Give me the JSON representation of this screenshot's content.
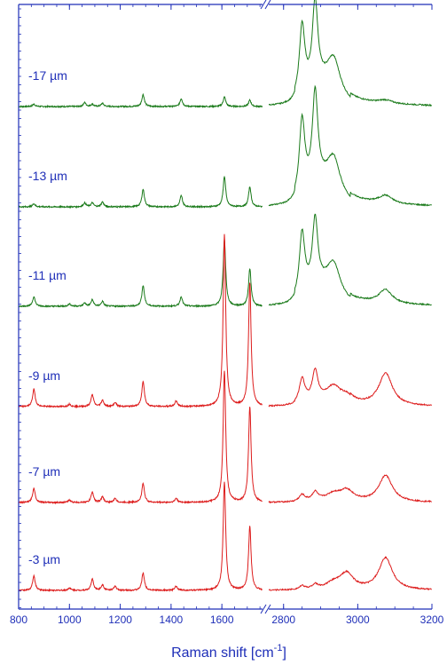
{
  "chart_data": {
    "type": "line",
    "title": "",
    "xlabel": "Raman shift [cm",
    "xlabel_sup": "-1",
    "xlabel_close": "]",
    "ylabel": "",
    "broken_axis": true,
    "x_segments": [
      {
        "xlim": [
          800,
          1760
        ],
        "ticks": [
          800,
          1000,
          1200,
          1400,
          1600
        ]
      },
      {
        "xlim": [
          2760,
          3200
        ],
        "ticks": [
          2800,
          3000,
          3200
        ]
      }
    ],
    "colors": {
      "axis": "#1f2fb8",
      "green": "#1a7a1a",
      "red": "#dd1c1c"
    },
    "series": [
      {
        "name": "-17 µm",
        "color": "green",
        "base": 0.0,
        "low": [
          [
            860,
            3
          ],
          [
            1060,
            5
          ],
          [
            1090,
            3
          ],
          [
            1130,
            4
          ],
          [
            1290,
            15
          ],
          [
            1440,
            10
          ],
          [
            1610,
            12
          ],
          [
            1710,
            8
          ]
        ],
        "high": [
          [
            2850,
            88
          ],
          [
            2885,
            105
          ],
          [
            2935,
            45
          ],
          [
            3075,
            4
          ]
        ]
      },
      {
        "name": "-13 µm",
        "color": "green",
        "base": 0.0,
        "low": [
          [
            860,
            4
          ],
          [
            1060,
            5
          ],
          [
            1090,
            5
          ],
          [
            1130,
            6
          ],
          [
            1290,
            22
          ],
          [
            1440,
            14
          ],
          [
            1610,
            38
          ],
          [
            1710,
            25
          ]
        ],
        "high": [
          [
            2850,
            95
          ],
          [
            2885,
            115
          ],
          [
            2935,
            45
          ],
          [
            3075,
            10
          ]
        ]
      },
      {
        "name": "-11 µm",
        "color": "green",
        "base": 0.0,
        "low": [
          [
            860,
            12
          ],
          [
            1000,
            3
          ],
          [
            1060,
            4
          ],
          [
            1090,
            8
          ],
          [
            1130,
            6
          ],
          [
            1290,
            26
          ],
          [
            1440,
            12
          ],
          [
            1610,
            83
          ],
          [
            1710,
            47
          ]
        ],
        "high": [
          [
            2850,
            80
          ],
          [
            2885,
            85
          ],
          [
            2935,
            40
          ],
          [
            3075,
            17
          ]
        ]
      },
      {
        "name": "-9 µm",
        "color": "red",
        "base": 0.0,
        "low": [
          [
            860,
            22
          ],
          [
            1000,
            3
          ],
          [
            1090,
            15
          ],
          [
            1130,
            8
          ],
          [
            1180,
            5
          ],
          [
            1290,
            32
          ],
          [
            1420,
            7
          ],
          [
            1610,
            215
          ],
          [
            1710,
            155
          ]
        ],
        "high": [
          [
            2850,
            30
          ],
          [
            2885,
            35
          ],
          [
            2935,
            18
          ],
          [
            2970,
            10
          ],
          [
            3075,
            40
          ]
        ]
      },
      {
        "name": "-7 µm",
        "color": "red",
        "base": 0.0,
        "low": [
          [
            860,
            18
          ],
          [
            1000,
            3
          ],
          [
            1090,
            13
          ],
          [
            1130,
            7
          ],
          [
            1180,
            5
          ],
          [
            1290,
            24
          ],
          [
            1420,
            5
          ],
          [
            1610,
            165
          ],
          [
            1710,
            120
          ]
        ],
        "high": [
          [
            2850,
            8
          ],
          [
            2885,
            10
          ],
          [
            2935,
            8
          ],
          [
            2970,
            14
          ],
          [
            3075,
            33
          ]
        ]
      },
      {
        "name": "-3 µm",
        "color": "red",
        "base": 0.0,
        "low": [
          [
            860,
            18
          ],
          [
            1000,
            3
          ],
          [
            1090,
            14
          ],
          [
            1130,
            7
          ],
          [
            1180,
            5
          ],
          [
            1290,
            22
          ],
          [
            1420,
            5
          ],
          [
            1610,
            135
          ],
          [
            1710,
            80
          ]
        ],
        "high": [
          [
            2850,
            4
          ],
          [
            2885,
            5
          ],
          [
            2935,
            7
          ],
          [
            2970,
            20
          ],
          [
            3075,
            40
          ]
        ]
      }
    ]
  }
}
